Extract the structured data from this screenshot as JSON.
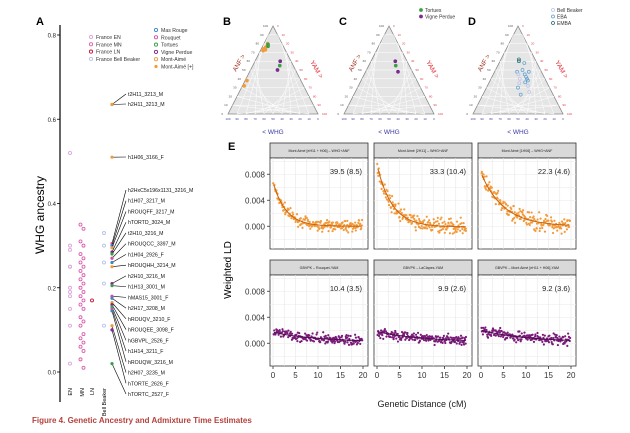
{
  "caption": "Figure 4. Genetic Ancestry and Admixture Time Estimates",
  "chart_data": [
    {
      "panel": "A",
      "type": "scatter",
      "ylabel": "WHG ancestry",
      "ylim": [
        -0.05,
        0.82
      ],
      "yticks": [
        "0.0",
        "0.2",
        "0.4",
        "0.6",
        "0.8"
      ],
      "ytick_values": [
        0.0,
        0.2,
        0.4,
        0.6,
        0.8
      ],
      "categories": [
        "EN",
        "MN",
        "LN",
        "Bell Beaker"
      ],
      "legend": [
        {
          "label": "France EN",
          "color": "#d9a6dd",
          "shape": "open-circle"
        },
        {
          "label": "France MN",
          "color": "#dc5fb0",
          "shape": "open-circle"
        },
        {
          "label": "France LN",
          "color": "#c8163f",
          "shape": "open-circle"
        },
        {
          "label": "France Bell Beaker",
          "color": "#b9c3e8",
          "shape": "open-circle"
        },
        {
          "label": "Mas Rouge",
          "color": "#3b86c8",
          "shape": "open-circle"
        },
        {
          "label": "Rouquet",
          "color": "#d64ea1",
          "shape": "open-circle"
        },
        {
          "label": "Tortues",
          "color": "#3aa048",
          "shape": "open-circle"
        },
        {
          "label": "Vigne Perdue",
          "color": "#7b2a8f",
          "shape": "open-circle"
        },
        {
          "label": "Mont-Aimé",
          "color": "#f39a3a",
          "shape": "open-circle"
        },
        {
          "label": "Mont-Aimé [+]",
          "color": "#f39a3a",
          "shape": "filled-circle"
        }
      ],
      "series": [
        {
          "name": "EN",
          "values": [
            0.52,
            0.3,
            0.29,
            0.25,
            0.25,
            0.2,
            0.19,
            0.18,
            0.15,
            0.11,
            0.02
          ]
        },
        {
          "name": "MN",
          "values": [
            0.35,
            0.34,
            0.31,
            0.3,
            0.28,
            0.27,
            0.26,
            0.25,
            0.24,
            0.23,
            0.22,
            0.21,
            0.2,
            0.19,
            0.18,
            0.17,
            0.16,
            0.15,
            0.13,
            0.12,
            0.11,
            0.09,
            0.08,
            0.07,
            0.06,
            0.05,
            0.03,
            0.01
          ]
        },
        {
          "name": "LN",
          "values": [
            0.17
          ]
        },
        {
          "name": "Bell Beaker",
          "values": [
            0.33,
            0.3,
            0.26,
            0.21,
            0.11
          ]
        }
      ],
      "labeled_samples": [
        {
          "label": "t2H11_3213_M",
          "value": 0.635
        },
        {
          "label": "h2H11_3213_M",
          "value": 0.635
        },
        {
          "label": "h1H06_3166_F",
          "value": 0.51
        },
        {
          "label": "h2HxC5x196x1131_3216_M",
          "value": 0.305
        },
        {
          "label": "h1H07_3217_M",
          "value": 0.3
        },
        {
          "label": "hROUQFF_3217_M",
          "value": 0.295
        },
        {
          "label": "hTORTD_3024_M",
          "value": 0.285
        },
        {
          "label": "t2H10_3216_M",
          "value": 0.28
        },
        {
          "label": "hROUQCC_3397_M",
          "value": 0.27
        },
        {
          "label": "h1H04_2926_F",
          "value": 0.26
        },
        {
          "label": "hROUQHH_3214_M",
          "value": 0.25
        },
        {
          "label": "h2H10_3216_M",
          "value": 0.21
        },
        {
          "label": "h1H13_3001_M",
          "value": 0.205
        },
        {
          "label": "hMAS15_3001_F",
          "value": 0.18
        },
        {
          "label": "h2H17_3208_M",
          "value": 0.175
        },
        {
          "label": "hROUQV_3210_F",
          "value": 0.165
        },
        {
          "label": "hROUQEE_3098_F",
          "value": 0.16
        },
        {
          "label": "hGBVPL_2526_F",
          "value": 0.155
        },
        {
          "label": "h1H14_3211_F",
          "value": 0.15
        },
        {
          "label": "hROUQW_3216_M",
          "value": 0.145
        },
        {
          "label": "h2H07_3235_M",
          "value": 0.11
        },
        {
          "label": "hTORTE_2626_F",
          "value": 0.1
        },
        {
          "label": "hTORTC_2527_F",
          "value": 0.02
        }
      ]
    },
    {
      "panel": "B",
      "type": "scatter",
      "subtype": "ternary",
      "axes": {
        "left": "ANF >",
        "right": "YAM >",
        "bottom": "< WHG"
      },
      "ticks": [
        "0",
        "10",
        "20",
        "30",
        "40",
        "50",
        "60",
        "70",
        "80",
        "90",
        "100"
      ],
      "series": [
        {
          "name": "Mont-Aimé cluster",
          "color": "#f39a3a",
          "points": [
            [
              0.72,
              0.03
            ],
            [
              0.74,
              0.03
            ],
            [
              0.76,
              0.04
            ],
            [
              0.78,
              0.05
            ],
            [
              0.8,
              0.04
            ],
            [
              0.73,
              0.05
            ]
          ]
        },
        {
          "name": "Mas Rouge cluster",
          "color": "#3aa048",
          "points": [
            [
              0.77,
              0.06
            ],
            [
              0.79,
              0.05
            ]
          ]
        },
        {
          "name": "Vigne Perdue",
          "color": "#7b2a8f",
          "points": [
            [
              0.6,
              0.28
            ],
            [
              0.5,
              0.3
            ]
          ]
        },
        {
          "name": "Tortues",
          "color": "#3aa048",
          "points": [
            [
              0.55,
              0.3
            ]
          ]
        },
        {
          "name": "Mont-Aimé [+]",
          "color": "#f39a3a",
          "points": [
            [
              0.38,
              0.02
            ],
            [
              0.32,
              0.02
            ]
          ]
        }
      ]
    },
    {
      "panel": "C",
      "type": "scatter",
      "subtype": "ternary",
      "axes": {
        "left": "ANF >",
        "right": "YAM >",
        "bottom": "< WHG"
      },
      "ticks": [
        "0",
        "10",
        "20",
        "30",
        "40",
        "50",
        "60",
        "70",
        "80",
        "90",
        "100"
      ],
      "legend": [
        {
          "label": "Tortues",
          "color": "#3aa048"
        },
        {
          "label": "Vigne Perdue",
          "color": "#7b2a8f"
        }
      ],
      "series": [
        {
          "name": "Vigne Perdue",
          "color": "#7b2a8f",
          "points": [
            [
              0.6,
              0.27
            ],
            [
              0.48,
              0.36
            ]
          ]
        },
        {
          "name": "Tortues",
          "color": "#3aa048",
          "points": [
            [
              0.55,
              0.3
            ]
          ]
        }
      ]
    },
    {
      "panel": "D",
      "type": "scatter",
      "subtype": "ternary",
      "axes": {
        "left": "ANF >",
        "right": "YAM >",
        "bottom": "< WHG"
      },
      "ticks": [
        "0",
        "10",
        "20",
        "30",
        "40",
        "50",
        "60",
        "70",
        "80",
        "90",
        "100"
      ],
      "legend": [
        {
          "label": "Bell Beaker",
          "color": "#b9c3e8"
        },
        {
          "label": "EBA",
          "color": "#5d9fd1"
        },
        {
          "label": "EMBA",
          "color": "#1d6f6f"
        }
      ],
      "series": [
        {
          "name": "EMBA",
          "color": "#1d6f6f",
          "points": [
            [
              0.62,
              0.2
            ],
            [
              0.6,
              0.21
            ]
          ]
        },
        {
          "name": "EBA",
          "color": "#5d9fd1",
          "points": [
            [
              0.58,
              0.28
            ],
            [
              0.5,
              0.3
            ],
            [
              0.48,
              0.38
            ],
            [
              0.45,
              0.35
            ],
            [
              0.42,
              0.38
            ],
            [
              0.4,
              0.4
            ],
            [
              0.38,
              0.42
            ],
            [
              0.36,
              0.4
            ],
            [
              0.3,
              0.35
            ],
            [
              0.22,
              0.42
            ],
            [
              0.48,
              0.25
            ]
          ]
        },
        {
          "name": "Bell Beaker",
          "color": "#b9c3e8",
          "points": [
            [
              0.45,
              0.28
            ],
            [
              0.4,
              0.32
            ],
            [
              0.35,
              0.34
            ],
            [
              0.25,
              0.5
            ],
            [
              0.32,
              0.45
            ]
          ]
        }
      ]
    },
    {
      "panel": "E",
      "type": "scatter",
      "subtype": "facet-grid",
      "ylabel": "Weighted LD",
      "xlabel": "Genetic Distance (cM)",
      "xlim": [
        0,
        20
      ],
      "xticks": [
        "0",
        "5",
        "10",
        "15",
        "20"
      ],
      "ylim": [
        -0.0035,
        0.0105
      ],
      "yticks": [
        "0.000",
        "0.004",
        "0.008"
      ],
      "ytick_values": [
        0.0,
        0.004,
        0.008
      ],
      "facets": [
        {
          "title": "Mont Aimé [eH11 + H06] – WHG+ANF",
          "annotation": "39.5 (8.5)",
          "color": "#f39a3a",
          "amplitude": 0.0068,
          "decay": 0.35,
          "offset": 0.0,
          "noise": 0.0012
        },
        {
          "title": "Mont Aimé [2H11] – WHG+ANF",
          "annotation": "33.3 (10.4)",
          "color": "#f39a3a",
          "amplitude": 0.0095,
          "decay": 0.3,
          "offset": -0.0001,
          "noise": 0.0016
        },
        {
          "title": "Mont Aimé [1H06] – WHG+ANF",
          "annotation": "22.3 (4.6)",
          "color": "#f39a3a",
          "amplitude": 0.0082,
          "decay": 0.2,
          "offset": 0.0,
          "noise": 0.002
        },
        {
          "title": "GBVPK – Rouquet-YAM",
          "annotation": "10.4 (3.5)",
          "color": "#7b1a7b",
          "amplitude": 0.0015,
          "decay": 0.1,
          "offset": 0.0002,
          "noise": 0.0011
        },
        {
          "title": "GBVPK – LaClapes-YAM",
          "annotation": "9.9 (2.6)",
          "color": "#7b1a7b",
          "amplitude": 0.0016,
          "decay": 0.1,
          "offset": 0.0002,
          "noise": 0.0011
        },
        {
          "title": "GBVPK – Mont Aimé [eH11 + H06]-YAM",
          "annotation": "9.2 (3.6)",
          "color": "#7b1a7b",
          "amplitude": 0.0018,
          "decay": 0.1,
          "offset": 0.0002,
          "noise": 0.0012
        }
      ]
    }
  ]
}
